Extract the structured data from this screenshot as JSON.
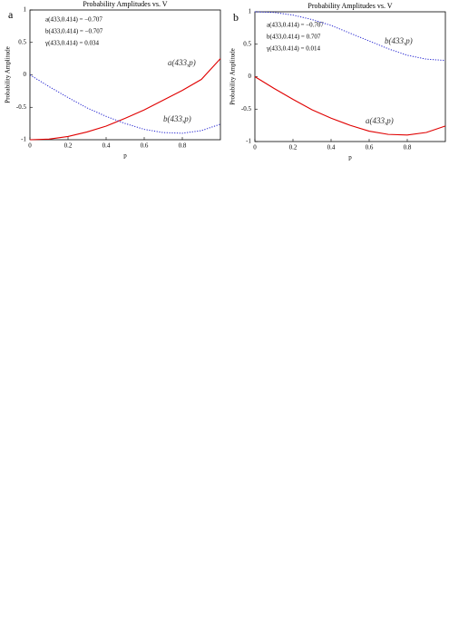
{
  "chart_data": [
    {
      "type": "line",
      "panel": "a",
      "title": "Probability Amplitudes vs. V",
      "x_label": "p",
      "y_label": "Probability Amplitude",
      "x": [
        0,
        0.1,
        0.2,
        0.3,
        0.4,
        0.5,
        0.6,
        0.7,
        0.8,
        0.9,
        1
      ],
      "series": [
        {
          "name": "a(433,p)",
          "color": "#e00000",
          "dashed": false,
          "values": [
            -1,
            -0.99,
            -0.95,
            -0.88,
            -0.79,
            -0.67,
            -0.54,
            -0.39,
            -0.24,
            -0.07,
            0.25
          ]
        },
        {
          "name": "b(433,p)",
          "color": "#2020d0",
          "dashed": true,
          "values": [
            0,
            -0.18,
            -0.35,
            -0.51,
            -0.64,
            -0.75,
            -0.84,
            -0.89,
            -0.9,
            -0.86,
            -0.76
          ]
        }
      ],
      "annotations": [
        "a(433,0.414) = −0.707",
        "b(433,0.414) = −0.707",
        "γ(433,0.414) = 0.034"
      ],
      "xlim": [
        0,
        1
      ],
      "xticks": [
        0,
        0.2,
        0.4,
        0.6,
        0.8
      ],
      "ylim": [
        -1,
        1
      ],
      "yticks": [
        -1,
        -0.5,
        0,
        0.5,
        1
      ]
    },
    {
      "type": "line",
      "panel": "b",
      "title": "Probability Amplitudes vs. V",
      "x_label": "p",
      "y_label": "Probability Amplitude",
      "x": [
        0,
        0.1,
        0.2,
        0.3,
        0.4,
        0.5,
        0.6,
        0.7,
        0.8,
        0.9,
        1
      ],
      "series": [
        {
          "name": "a(433,p)",
          "color": "#e00000",
          "dashed": false,
          "values": [
            0,
            -0.18,
            -0.35,
            -0.51,
            -0.64,
            -0.75,
            -0.84,
            -0.89,
            -0.9,
            -0.86,
            -0.76
          ]
        },
        {
          "name": "b(433,p)",
          "color": "#2020d0",
          "dashed": true,
          "values": [
            1,
            0.99,
            0.95,
            0.88,
            0.79,
            0.67,
            0.55,
            0.43,
            0.33,
            0.27,
            0.25
          ]
        }
      ],
      "annotations": [
        "a(433,0.414) = −0.707",
        "b(433,0.414) = 0.707",
        "γ(433,0.414) = 0.014"
      ],
      "xlim": [
        0,
        1
      ],
      "xticks": [
        0,
        0.2,
        0.4,
        0.6,
        0.8
      ],
      "ylim": [
        -1,
        1
      ],
      "yticks": [
        -1,
        -0.5,
        0,
        0.5,
        1
      ]
    }
  ]
}
